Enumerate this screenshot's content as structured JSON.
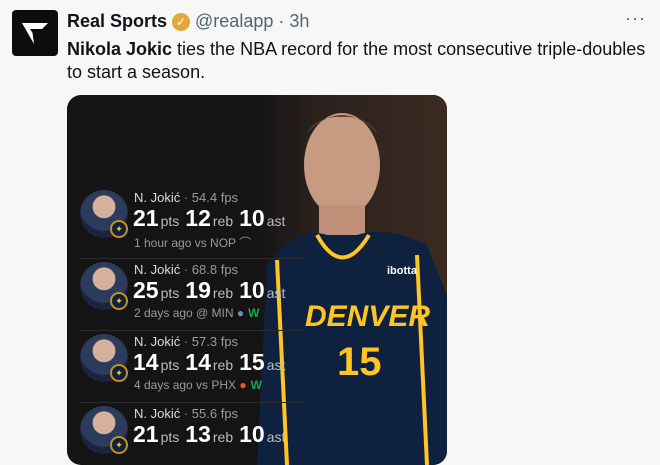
{
  "tweet": {
    "account_name": "Real Sports",
    "handle": "@realapp",
    "time": "· 3h",
    "more": "···",
    "text_bold": "Nikola Jokic",
    "text_rest": " ties the NBA record for the most consecutive triple-doubles to start a season."
  },
  "card": {
    "jersey_brand": "ibotta",
    "jersey_team": "DENVER",
    "jersey_number": "15",
    "games": [
      {
        "player": "N. Jokić",
        "fps": "· 54.4 fps",
        "pts": "21",
        "reb": "12",
        "ast": "10",
        "meta": "1 hour ago vs NOP",
        "result": ""
      },
      {
        "player": "N. Jokić",
        "fps": "· 68.8 fps",
        "pts": "25",
        "reb": "19",
        "ast": "10",
        "meta": "2 days ago @ MIN",
        "result": "W"
      },
      {
        "player": "N. Jokić",
        "fps": "· 57.3 fps",
        "pts": "14",
        "reb": "14",
        "ast": "15",
        "meta": "4 days ago vs PHX",
        "result": "W"
      },
      {
        "player": "N. Jokić",
        "fps": "· 55.6 fps",
        "pts": "21",
        "reb": "13",
        "ast": "10",
        "meta": "",
        "result": ""
      }
    ],
    "labels": {
      "pts": "pts",
      "reb": "reb",
      "ast": "ast"
    }
  }
}
